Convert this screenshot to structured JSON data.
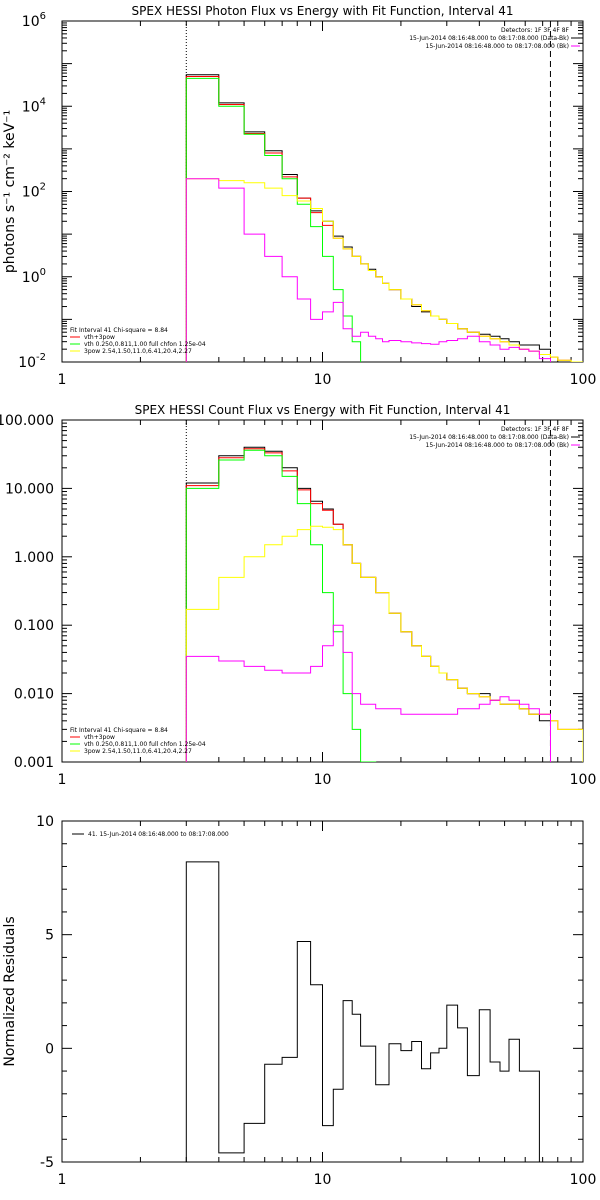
{
  "chart_data": [
    {
      "type": "line",
      "title": "SPEX HESSI Photon Flux vs Energy with Fit Function, Interval 41",
      "ylabel": "photons s⁻¹ cm⁻² keV⁻¹",
      "xlabel": "",
      "x_scale": "log",
      "y_scale": "log",
      "xlim": [
        1,
        100
      ],
      "ylim": [
        0.01,
        1000000
      ],
      "x_ticks": [
        "1",
        "10",
        "100"
      ],
      "y_ticks": [
        {
          "base": "10",
          "exp": "-2",
          "value": 0.01
        },
        {
          "base": "10",
          "exp": "0",
          "value": 1
        },
        {
          "base": "10",
          "exp": "2",
          "value": 100
        },
        {
          "base": "10",
          "exp": "4",
          "value": 10000
        },
        {
          "base": "10",
          "exp": "6",
          "value": 1000000
        }
      ],
      "vlines": [
        {
          "x": 3,
          "style": "dotted"
        },
        {
          "x": 75,
          "style": "dashed"
        }
      ],
      "legend_top_right": [
        {
          "text": "Detectors: 1F 3F 4F 8F",
          "color": ""
        },
        {
          "text": "15-Jun-2014 08:16:48.000 to 08:17:08.000 (Data-Bk)",
          "color": "#000000"
        },
        {
          "text": "15-Jun-2014 08:16:48.000 to 08:17:08.000 (Bk)",
          "color": "#ff00ff"
        }
      ],
      "legend_bottom_left": [
        {
          "text": "Fit Interval 41    Chi-square = 8.84",
          "color": ""
        },
        {
          "text": "vth+3pow",
          "color": "#ff0000"
        },
        {
          "text": "vth 0.250,0.811,1.00  full chfon 1.25e-04",
          "color": "#00ff00"
        },
        {
          "text": "3pow 2.54,1.50,11.0,6.41,20.4,2.27",
          "color": "#ffff00"
        }
      ],
      "bin_edges": [
        3,
        3.5,
        4,
        4.5,
        5,
        5.5,
        6,
        6.5,
        7,
        7.5,
        8,
        8.5,
        9,
        9.5,
        10,
        11,
        12,
        13,
        14,
        15,
        16,
        17,
        18,
        20,
        22,
        24,
        26,
        28,
        30,
        33,
        36,
        40,
        44,
        48,
        52,
        57,
        62,
        68,
        75,
        80,
        90,
        100
      ],
      "series": [
        {
          "name": "Data-Bk",
          "color": "#000000",
          "values": [
            55000,
            55000,
            12000,
            12000,
            2500,
            2500,
            900,
            900,
            250,
            250,
            70,
            70,
            35,
            35,
            20,
            9,
            5,
            3,
            2,
            1.5,
            1,
            0.7,
            0.5,
            0.3,
            0.2,
            0.15,
            0.12,
            0.1,
            0.08,
            0.06,
            0.05,
            0.045,
            0.04,
            0.035,
            0.03,
            0.025,
            0.025,
            0.02
          ]
        },
        {
          "name": "vth+3pow",
          "color": "#ff0000",
          "values": [
            50000,
            50000,
            11000,
            11000,
            2300,
            2300,
            800,
            800,
            220,
            220,
            70,
            70,
            32,
            32,
            16,
            8,
            4.5,
            3,
            2,
            1.4,
            1,
            0.7,
            0.5,
            0.3,
            0.22,
            0.16,
            0.12,
            0.1,
            0.08,
            0.06,
            0.05,
            0.04,
            0.035,
            0.03,
            0.025,
            0.02,
            0.018,
            0.015,
            0.013,
            0.011,
            0.01
          ]
        },
        {
          "name": "vth",
          "color": "#00ff00",
          "values": [
            45000,
            45000,
            10000,
            10000,
            2200,
            2200,
            700,
            700,
            200,
            200,
            50,
            50,
            15,
            15,
            3,
            0.5,
            0.12,
            0.03,
            0.008,
            0.002
          ]
        },
        {
          "name": "3pow",
          "color": "#ffff00",
          "values": [
            200,
            200,
            180,
            180,
            160,
            160,
            120,
            120,
            80,
            80,
            60,
            60,
            40,
            40,
            20,
            8,
            4.5,
            3,
            2,
            1.4,
            1,
            0.7,
            0.5,
            0.3,
            0.22,
            0.16,
            0.12,
            0.1,
            0.08,
            0.06,
            0.05,
            0.04,
            0.035,
            0.03,
            0.025,
            0.02,
            0.018,
            0.015,
            0.013,
            0.011,
            0.01
          ]
        },
        {
          "name": "Bk",
          "color": "#ff00ff",
          "values": [
            200,
            200,
            120,
            120,
            10,
            10,
            3,
            3,
            1,
            1,
            0.3,
            0.3,
            0.1,
            0.1,
            0.15,
            0.25,
            0.06,
            0.04,
            0.05,
            0.04,
            0.035,
            0.03,
            0.032,
            0.03,
            0.028,
            0.027,
            0.026,
            0.03,
            0.032,
            0.035,
            0.04,
            0.03,
            0.025,
            0.02,
            0.022,
            0.02,
            0.018,
            0.012
          ]
        }
      ]
    },
    {
      "type": "line",
      "title": "SPEX HESSI Count Flux vs Energy with Fit Function, Interval 41",
      "xlabel": "",
      "ylabel": "",
      "x_scale": "log",
      "y_scale": "log",
      "xlim": [
        1,
        100
      ],
      "ylim": [
        0.001,
        100
      ],
      "x_ticks": [
        "1",
        "10",
        "100"
      ],
      "y_ticks": [
        {
          "label": "0.001",
          "value": 0.001
        },
        {
          "label": "0.010",
          "value": 0.01
        },
        {
          "label": "0.100",
          "value": 0.1
        },
        {
          "label": "1.000",
          "value": 1
        },
        {
          "label": "10.000",
          "value": 10
        },
        {
          "label": "100.000",
          "value": 100
        }
      ],
      "vlines": [
        {
          "x": 3,
          "style": "dotted"
        },
        {
          "x": 75,
          "style": "dashed"
        }
      ],
      "legend_top_right": [
        {
          "text": "Detectors: 1F 3F 4F 8F",
          "color": ""
        },
        {
          "text": "15-Jun-2014 08:16:48.000 to 08:17:08.000 (Data-Bk)",
          "color": "#000000"
        },
        {
          "text": "15-Jun-2014 08:16:48.000 to 08:17:08.000 (Bk)",
          "color": "#ff00ff"
        }
      ],
      "legend_bottom_left": [
        {
          "text": "Fit Interval 41    Chi-square = 8.84",
          "color": ""
        },
        {
          "text": "vth+3pow",
          "color": "#ff0000"
        },
        {
          "text": "vth 0.250,0.811,1.00  full chfon 1.25e-04",
          "color": "#00ff00"
        },
        {
          "text": "3pow 2.54,1.50,11.0,6.41,20.4,2.27",
          "color": "#ffff00"
        }
      ],
      "bin_edges": [
        3,
        4,
        5,
        6,
        7,
        8,
        9,
        10,
        11,
        12,
        13,
        14,
        16,
        18,
        20,
        22,
        24,
        26,
        28,
        30,
        33,
        36,
        40,
        44,
        48,
        52,
        57,
        62,
        68,
        75,
        80,
        90,
        100
      ],
      "series": [
        {
          "name": "Data-Bk",
          "color": "#000000",
          "values": [
            12,
            30,
            40,
            35,
            20,
            10,
            6.5,
            5,
            3,
            1.5,
            0.8,
            0.5,
            0.3,
            0.15,
            0.08,
            0.05,
            0.035,
            0.025,
            0.02,
            0.016,
            0.012,
            0.01,
            0.01,
            0.008,
            0.007,
            0.007,
            0.006,
            0.005,
            0.004
          ]
        },
        {
          "name": "vth+3pow",
          "color": "#ff0000",
          "values": [
            11,
            28,
            38,
            33,
            18,
            9.5,
            6,
            4.8,
            3,
            1.5,
            0.8,
            0.5,
            0.3,
            0.15,
            0.08,
            0.05,
            0.035,
            0.025,
            0.02,
            0.016,
            0.012,
            0.01,
            0.009,
            0.008,
            0.007,
            0.007,
            0.006,
            0.005,
            0.005,
            0.004,
            0.003,
            0.003
          ]
        },
        {
          "name": "vth",
          "color": "#00ff00",
          "values": [
            10,
            26,
            36,
            30,
            15,
            6,
            1.5,
            0.3,
            0.08,
            0.01,
            0.003,
            0.001
          ]
        },
        {
          "name": "3pow",
          "color": "#ffff00",
          "values": [
            0.17,
            0.5,
            1,
            1.5,
            2,
            2.5,
            2.8,
            2.7,
            2.5,
            1.5,
            0.8,
            0.5,
            0.3,
            0.15,
            0.08,
            0.05,
            0.035,
            0.025,
            0.02,
            0.016,
            0.012,
            0.01,
            0.009,
            0.008,
            0.007,
            0.007,
            0.006,
            0.005,
            0.005,
            0.004,
            0.003,
            0.003
          ]
        },
        {
          "name": "Bk",
          "color": "#ff00ff",
          "values": [
            0.035,
            0.03,
            0.025,
            0.022,
            0.02,
            0.02,
            0.025,
            0.05,
            0.1,
            0.04,
            0.01,
            0.007,
            0.006,
            0.006,
            0.005,
            0.005,
            0.005,
            0.005,
            0.005,
            0.005,
            0.006,
            0.006,
            0.007,
            0.008,
            0.009,
            0.008,
            0.007,
            0.006,
            0.005
          ]
        }
      ]
    },
    {
      "type": "line",
      "title": "",
      "xlabel": "",
      "ylabel": "Normalized Residuals",
      "x_scale": "log",
      "y_scale": "linear",
      "xlim": [
        1,
        100
      ],
      "ylim": [
        -5,
        10
      ],
      "x_ticks": [
        "1",
        "10",
        "100"
      ],
      "y_ticks": [
        {
          "label": "-5",
          "value": -5
        },
        {
          "label": "0",
          "value": 0
        },
        {
          "label": "5",
          "value": 5
        },
        {
          "label": "10",
          "value": 10
        }
      ],
      "legend": [
        {
          "text": "41. 15-Jun-2014 08:16:48.000 to 08:17:08.000",
          "color": "#000000"
        }
      ],
      "bin_edges": [
        3,
        4,
        5,
        6,
        7,
        8,
        9,
        10,
        11,
        12,
        13,
        14,
        16,
        18,
        20,
        22,
        24,
        26,
        28,
        30,
        33,
        36,
        40,
        44,
        48,
        52,
        57,
        62,
        68,
        75
      ],
      "series": [
        {
          "name": "residuals",
          "color": "#000000",
          "values": [
            8.2,
            -4.6,
            -3.3,
            -0.7,
            -0.4,
            4.7,
            2.8,
            -3.4,
            -1.8,
            2.1,
            1.5,
            0.1,
            -1.6,
            0.2,
            -0.1,
            0.3,
            -0.9,
            -0.2,
            0.0,
            1.9,
            0.9,
            -1.2,
            1.7,
            -0.6,
            -1.0,
            0.4,
            -1.0,
            -1.0,
            -5.0
          ]
        }
      ]
    }
  ]
}
